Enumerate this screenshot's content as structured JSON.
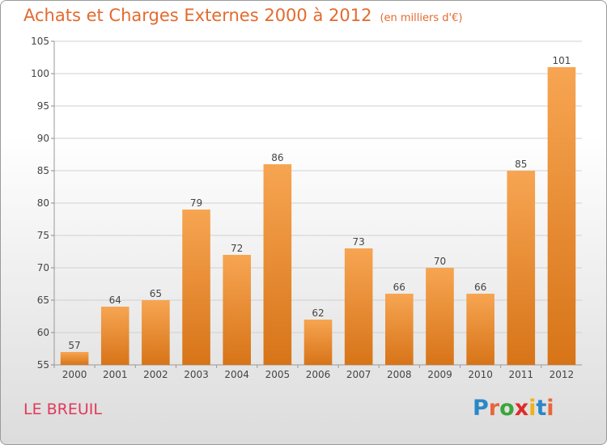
{
  "header": {
    "title": "Achats et Charges Externes 2000 à 2012",
    "unit": "(en milliers d'€)"
  },
  "place": "LE BREUIL",
  "logo": {
    "text": "Proxiti",
    "colors": [
      "#2a87c8",
      "#e8663a",
      "#3ba53b",
      "#e02a2a",
      "#f0b21a",
      "#2a87c8",
      "#e8663a"
    ]
  },
  "colors": {
    "bar_top": "#f7a552",
    "bar_bottom": "#d77418",
    "title": "#e46a2e",
    "place": "#e0395b"
  },
  "chart_data": {
    "type": "bar",
    "categories": [
      "2000",
      "2001",
      "2002",
      "2003",
      "2004",
      "2005",
      "2006",
      "2007",
      "2008",
      "2009",
      "2010",
      "2011",
      "2012"
    ],
    "values": [
      57,
      64,
      65,
      79,
      72,
      86,
      62,
      73,
      66,
      70,
      66,
      85,
      101
    ],
    "title": "Achats et Charges Externes 2000 à 2012",
    "ylabel": "",
    "ylim": [
      55,
      105
    ],
    "yticks": [
      55,
      60,
      65,
      70,
      75,
      80,
      85,
      90,
      95,
      100,
      105
    ],
    "grid": true,
    "legend": "none"
  }
}
